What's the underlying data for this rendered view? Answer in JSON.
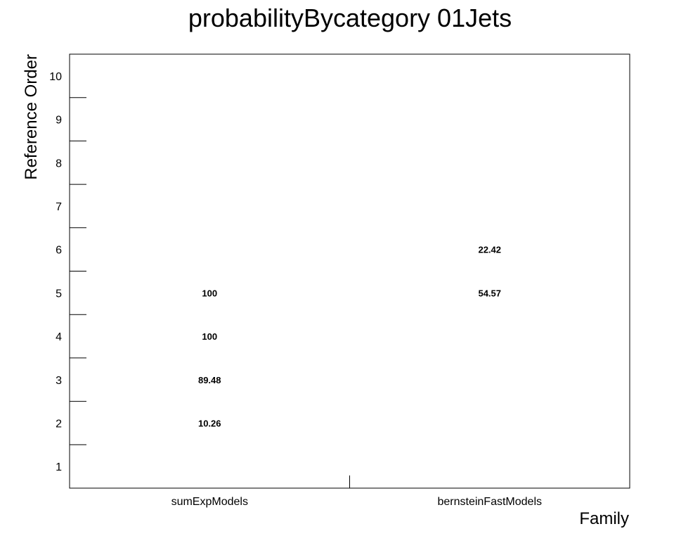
{
  "chart_data": {
    "type": "table",
    "title": "probabilityBycategory 01Jets",
    "xlabel": "Family",
    "ylabel": "Reference Order",
    "categories": [
      "sumExpModels",
      "bernsteinFastModels"
    ],
    "y_ticks": [
      "1",
      "2",
      "3",
      "4",
      "5",
      "6",
      "7",
      "8",
      "9",
      "10"
    ],
    "ylim": [
      0.5,
      10.5
    ],
    "cells": [
      {
        "category": "sumExpModels",
        "y": 2,
        "value": "10.26"
      },
      {
        "category": "sumExpModels",
        "y": 3,
        "value": "89.48"
      },
      {
        "category": "sumExpModels",
        "y": 4,
        "value": "100"
      },
      {
        "category": "sumExpModels",
        "y": 5,
        "value": "100"
      },
      {
        "category": "bernsteinFastModels",
        "y": 5,
        "value": "54.57"
      },
      {
        "category": "bernsteinFastModels",
        "y": 6,
        "value": "22.42"
      }
    ],
    "grid": false,
    "legend": "none",
    "colors": {
      "frame": "#000000",
      "text": "#000000",
      "background": "#ffffff"
    }
  }
}
